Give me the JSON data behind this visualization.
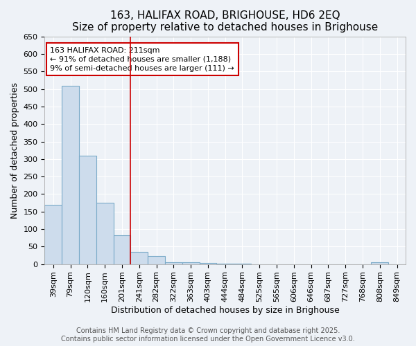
{
  "title": "163, HALIFAX ROAD, BRIGHOUSE, HD6 2EQ",
  "subtitle": "Size of property relative to detached houses in Brighouse",
  "xlabel": "Distribution of detached houses by size in Brighouse",
  "ylabel": "Number of detached properties",
  "categories": [
    "39sqm",
    "79sqm",
    "120sqm",
    "160sqm",
    "201sqm",
    "241sqm",
    "282sqm",
    "322sqm",
    "363sqm",
    "403sqm",
    "444sqm",
    "484sqm",
    "525sqm",
    "565sqm",
    "606sqm",
    "646sqm",
    "687sqm",
    "727sqm",
    "768sqm",
    "808sqm",
    "849sqm"
  ],
  "values": [
    170,
    510,
    310,
    175,
    83,
    35,
    22,
    5,
    5,
    3,
    1,
    1,
    0,
    0,
    0,
    0,
    0,
    0,
    0,
    5,
    0
  ],
  "bar_color": "#cddcec",
  "bar_edge_color": "#7aaac8",
  "background_color": "#eef2f7",
  "grid_color": "#ffffff",
  "annotation_line1": "163 HALIFAX ROAD: 211sqm",
  "annotation_line2": "← 91% of detached houses are smaller (1,188)",
  "annotation_line3": "9% of semi-detached houses are larger (111) →",
  "vline_position": 4.5,
  "vline_color": "#cc0000",
  "ylim": [
    0,
    650
  ],
  "yticks": [
    0,
    50,
    100,
    150,
    200,
    250,
    300,
    350,
    400,
    450,
    500,
    550,
    600,
    650
  ],
  "footer_line1": "Contains HM Land Registry data © Crown copyright and database right 2025.",
  "footer_line2": "Contains public sector information licensed under the Open Government Licence v3.0.",
  "title_fontsize": 11,
  "subtitle_fontsize": 10,
  "axis_label_fontsize": 9,
  "tick_fontsize": 8,
  "annotation_fontsize": 8,
  "footer_fontsize": 7
}
